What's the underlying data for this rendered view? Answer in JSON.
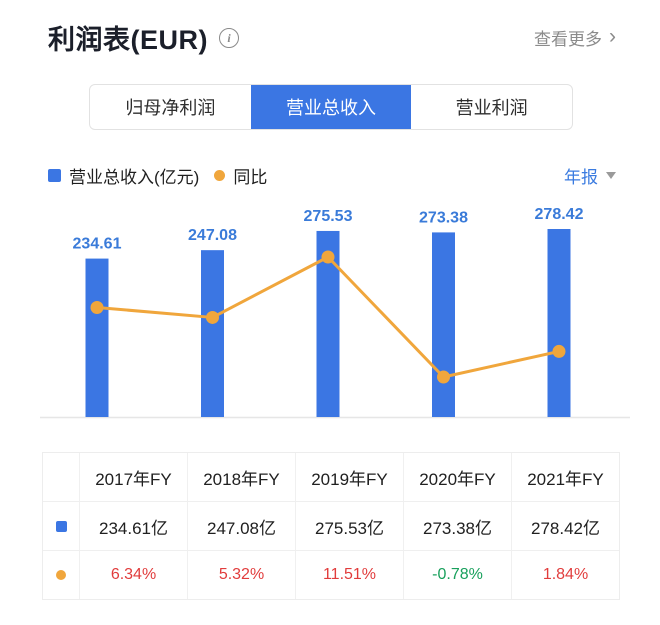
{
  "header": {
    "title": "利润表(EUR)",
    "info_icon_glyph": "i",
    "more_label": "查看更多",
    "chevron_right": "›"
  },
  "tabs": [
    {
      "label": "归母净利润",
      "active": false
    },
    {
      "label": "营业总收入",
      "active": true
    },
    {
      "label": "营业利润",
      "active": false
    }
  ],
  "legend": {
    "bar_label": "营业总收入(亿元)",
    "line_label": "同比"
  },
  "period_selector": {
    "label": "年报"
  },
  "colors": {
    "bar": "#3b76e3",
    "bar_value_label": "#3a7bd9",
    "line": "#f0a63c",
    "up_red": "#e13c3c",
    "down_green": "#18a05c",
    "accent_blue": "#3a7be0",
    "baseline_gray": "#e6e6e6"
  },
  "chart_data": {
    "type": "bar",
    "subtype": "bar+line-combo",
    "categories": [
      "2017年FY",
      "2018年FY",
      "2019年FY",
      "2020年FY",
      "2021年FY"
    ],
    "series": [
      {
        "name": "营业总收入(亿元)",
        "type": "bar",
        "values": [
          234.61,
          247.08,
          275.53,
          273.38,
          278.42
        ]
      },
      {
        "name": "同比",
        "type": "line",
        "unit": "%",
        "values": [
          6.34,
          5.32,
          11.51,
          -0.78,
          1.84
        ]
      }
    ],
    "bar_labels": [
      "234.61",
      "247.08",
      "275.53",
      "273.38",
      "278.42"
    ],
    "title": "营业总收入 年报",
    "xlabel": "",
    "ylabel": "亿元",
    "ylim": [
      0,
      280
    ],
    "axes_hidden": true,
    "grid": false,
    "legend_position": "top-left"
  },
  "table": {
    "columns": [
      "2017年FY",
      "2018年FY",
      "2019年FY",
      "2020年FY",
      "2021年FY"
    ],
    "rows": [
      {
        "marker": "bar",
        "cells": [
          "234.61亿",
          "247.08亿",
          "275.53亿",
          "273.38亿",
          "278.42亿"
        ]
      },
      {
        "marker": "line",
        "cells": [
          {
            "text": "6.34%",
            "dir": "up"
          },
          {
            "text": "5.32%",
            "dir": "up"
          },
          {
            "text": "11.51%",
            "dir": "up"
          },
          {
            "text": "-0.78%",
            "dir": "down"
          },
          {
            "text": "1.84%",
            "dir": "up"
          }
        ]
      }
    ]
  }
}
